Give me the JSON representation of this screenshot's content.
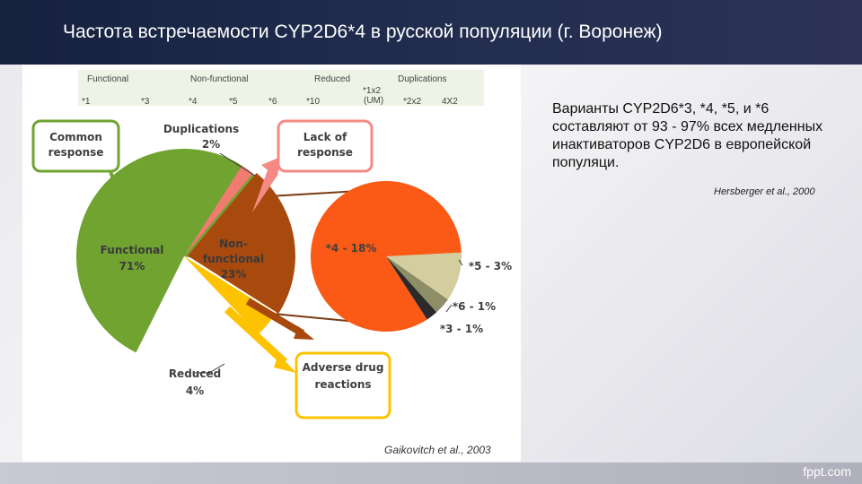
{
  "slide": {
    "title": "Частота встречаемости CYP2D6*4 в русской популяции (г. Воронеж)",
    "side_text": "Варианты CYP2D6*3, *4, *5, и *6 составляют от 93 - 97% всех медленных инактиваторов CYP2D6 в европейской популяци.",
    "side_citation": "Hersberger et al., 2000",
    "chart_citation": "Gaikovitch et al., 2003",
    "watermark": "fppt.com"
  },
  "allele_table": {
    "groups": [
      "Functional",
      "Non-functional",
      "Reduced",
      "Duplications"
    ],
    "alleles": [
      "*1",
      "*3",
      "*4",
      "*5",
      "*6",
      "*10",
      "*1x2 (UM)",
      "*2x2",
      "4X2"
    ]
  },
  "boxes": {
    "common": "Common response",
    "lack": "Lack of response",
    "adverse": "Adverse drug reactions"
  },
  "chart_data": [
    {
      "type": "pie",
      "slices": [
        {
          "label": "Functional",
          "value": 71,
          "display": "71%",
          "color": "#70a330"
        },
        {
          "label": "Non-functional",
          "value": 23,
          "display": "23%",
          "color": "#a8490e"
        },
        {
          "label": "Reduced",
          "value": 4,
          "display": "4%",
          "color": "#fdc300"
        },
        {
          "label": "Duplications",
          "value": 2,
          "display": "2%",
          "color": "#f07b70"
        }
      ]
    },
    {
      "type": "pie",
      "slices": [
        {
          "label": "*4 - 18%",
          "value": 18,
          "color": "#fa5a16"
        },
        {
          "label": "*5 - 3%",
          "value": 3,
          "color": "#d4cda0"
        },
        {
          "label": "*6 - 1%",
          "value": 1,
          "color": "#2a2a2a"
        },
        {
          "label": "*3 - 1%",
          "value": 1,
          "color": "#8e8e66"
        }
      ]
    }
  ]
}
